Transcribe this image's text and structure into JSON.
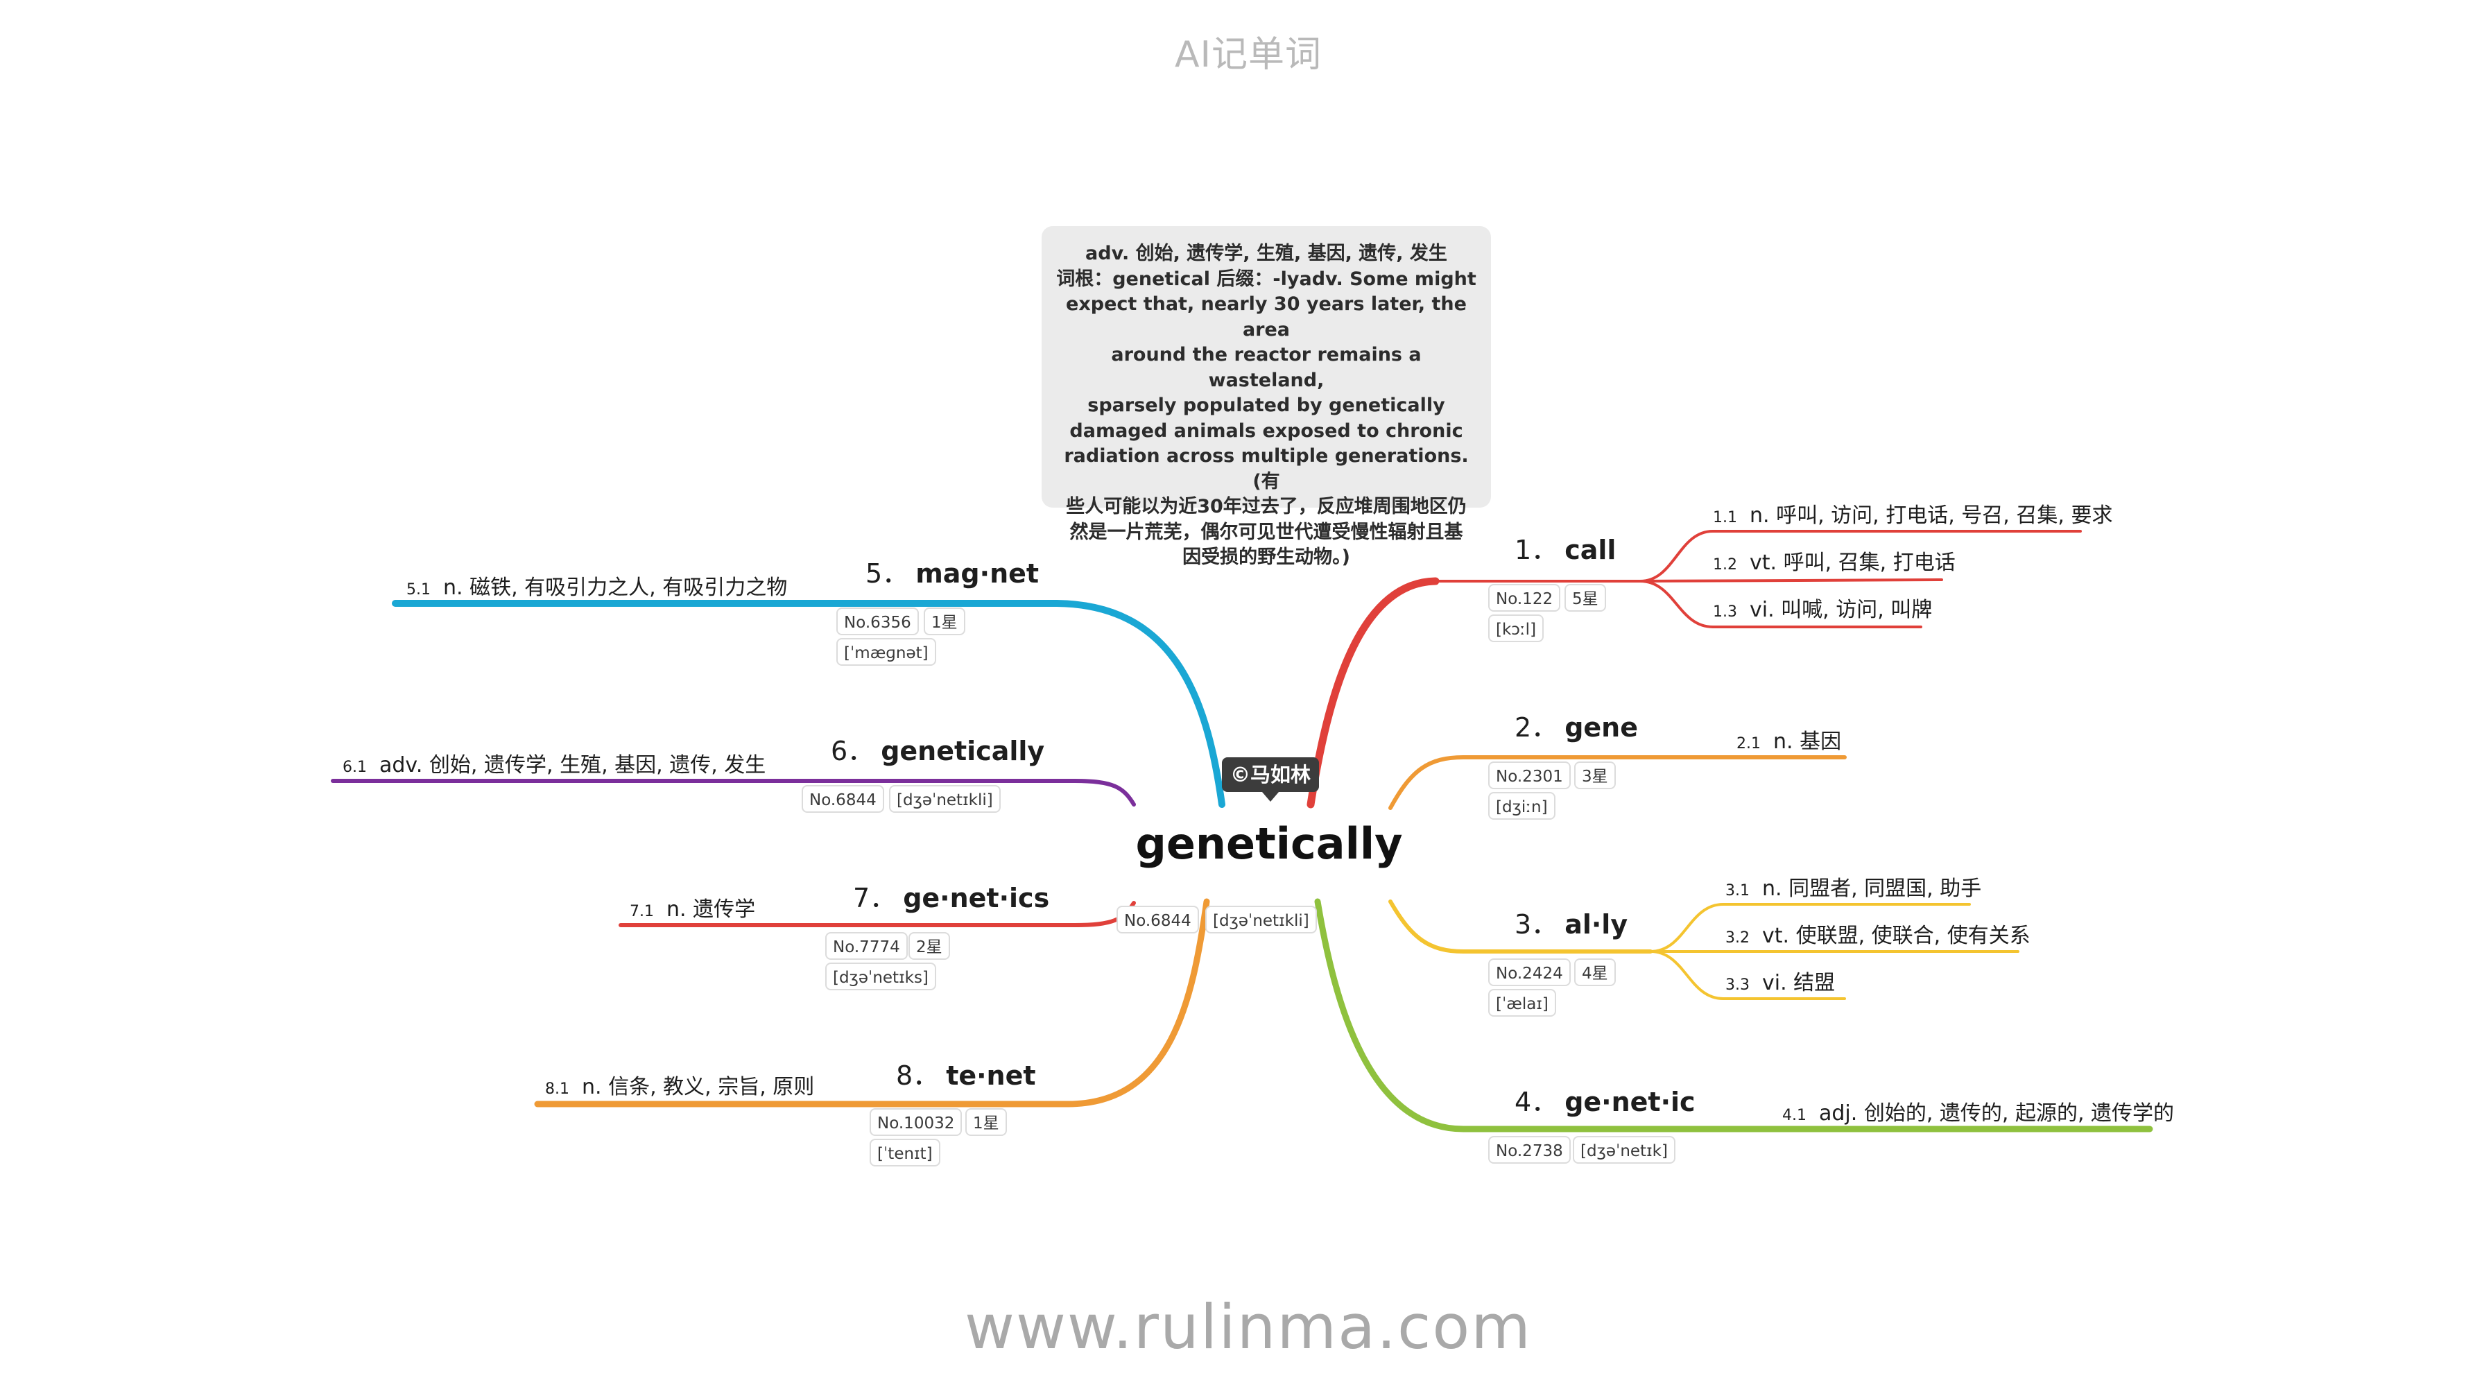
{
  "header": {
    "title": "AI记单词"
  },
  "footer": {
    "url": "www.rulinma.com"
  },
  "center": {
    "word": "genetically",
    "badge": "©马如林",
    "no": "No.6844",
    "phonetic": "[dʒəˈnetɪkli]"
  },
  "note": {
    "lines": [
      "adv. 创始, 遗传学, 生殖, 基因, 遗传, 发生",
      "词根：genetical 后缀：-lyadv. Some might",
      "expect that, nearly 30 years later, the area",
      "around the reactor remains a wasteland,",
      "sparsely populated by genetically",
      "damaged animals exposed to chronic",
      "radiation across multiple generations. (有",
      "些人可能以为近30年过去了，反应堆周围地区仍",
      "然是一片荒芜，偶尔可见世代遭受慢性辐射且基",
      "因受损的野生动物。)"
    ]
  },
  "branches": [
    {
      "num": "1．",
      "word": "call",
      "color": "#e0403a",
      "no": "No.122",
      "stars": "5星",
      "phonetic": "[kɔːl]",
      "senses": [
        {
          "num": "1.1",
          "text": "n. 呼叫, 访问, 打电话, 号召, 召集, 要求"
        },
        {
          "num": "1.2",
          "text": "vt. 呼叫, 召集, 打电话"
        },
        {
          "num": "1.3",
          "text": "vi. 叫喊, 访问, 叫牌"
        }
      ]
    },
    {
      "num": "2．",
      "word": "gene",
      "color": "#ef9a35",
      "no": "No.2301",
      "stars": "3星",
      "phonetic": "[dʒiːn]",
      "senses": [
        {
          "num": "2.1",
          "text": "n. 基因"
        }
      ]
    },
    {
      "num": "3．",
      "word": "al·ly",
      "color": "#f4c430",
      "no": "No.2424",
      "stars": "4星",
      "phonetic": "[ˈælaɪ]",
      "senses": [
        {
          "num": "3.1",
          "text": "n. 同盟者, 同盟国, 助手"
        },
        {
          "num": "3.2",
          "text": "vt. 使联盟, 使联合, 使有关系"
        },
        {
          "num": "3.3",
          "text": "vi. 结盟"
        }
      ]
    },
    {
      "num": "4．",
      "word": "ge·net·ic",
      "color": "#8fc13e",
      "no": "No.2738",
      "stars": "",
      "phonetic": "[dʒəˈnetɪk]",
      "senses": [
        {
          "num": "4.1",
          "text": "adj. 创始的, 遗传的, 起源的, 遗传学的"
        }
      ]
    },
    {
      "num": "5．",
      "word": "mag·net",
      "color": "#1aa7d4",
      "no": "No.6356",
      "stars": "1星",
      "phonetic": "[ˈmæɡnət]",
      "senses": [
        {
          "num": "5.1",
          "text": "n. 磁铁, 有吸引力之人, 有吸引力之物"
        }
      ]
    },
    {
      "num": "6．",
      "word": "genetically",
      "color": "#7b2f9b",
      "no": "No.6844",
      "stars": "",
      "phonetic": "[dʒəˈnetɪkli]",
      "senses": [
        {
          "num": "6.1",
          "text": "adv. 创始, 遗传学, 生殖, 基因, 遗传, 发生"
        }
      ]
    },
    {
      "num": "7．",
      "word": "ge·net·ics",
      "color": "#e0403a",
      "no": "No.7774",
      "stars": "2星",
      "phonetic": "[dʒəˈnetɪks]",
      "senses": [
        {
          "num": "7.1",
          "text": "n. 遗传学"
        }
      ]
    },
    {
      "num": "8．",
      "word": "te·net",
      "color": "#ef9a35",
      "no": "No.10032",
      "stars": "1星",
      "phonetic": "[ˈtenɪt]",
      "senses": [
        {
          "num": "8.1",
          "text": "n. 信条, 教义, 宗旨, 原则"
        }
      ]
    }
  ]
}
